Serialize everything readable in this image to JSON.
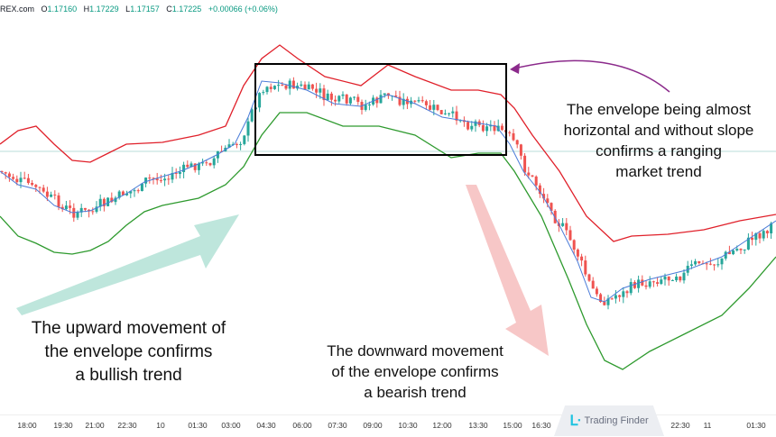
{
  "header": {
    "symbol": "REX.com",
    "open_label": "O",
    "open": "1.17160",
    "high_label": "H",
    "high": "1.17229",
    "low_label": "L",
    "low": "1.17157",
    "close_label": "C",
    "close": "1.17225",
    "change": "+0.00066 (+0.06%)"
  },
  "annotations": {
    "ranging": [
      "The envelope being almost",
      "horizontal and without slope",
      "confirms a ranging",
      "market trend"
    ],
    "bullish": [
      "The upward movement of",
      "the envelope confirms",
      "a bullish trend"
    ],
    "bearish": [
      "The downward movement",
      "of the envelope confirms",
      "a bearish trend"
    ]
  },
  "time_axis": [
    "18:00",
    "19:30",
    "21:00",
    "22:30",
    "10",
    "01:30",
    "03:00",
    "04:30",
    "06:00",
    "07:30",
    "09:00",
    "10:30",
    "12:00",
    "13:30",
    "15:00",
    "16:30",
    "22:30",
    "11",
    "01:30"
  ],
  "logo": {
    "text": "Trading Finder"
  },
  "colors": {
    "upper_band": "#e0202a",
    "lower_band": "#2e9a2e",
    "middle": "#4a7bd8",
    "bull": "#26a69a",
    "bear": "#ef5350",
    "range_box": "#000000",
    "arrow_up": "#a8ddd0",
    "arrow_down": "#f4b4b4",
    "pointer": "#8b2a8b"
  }
}
